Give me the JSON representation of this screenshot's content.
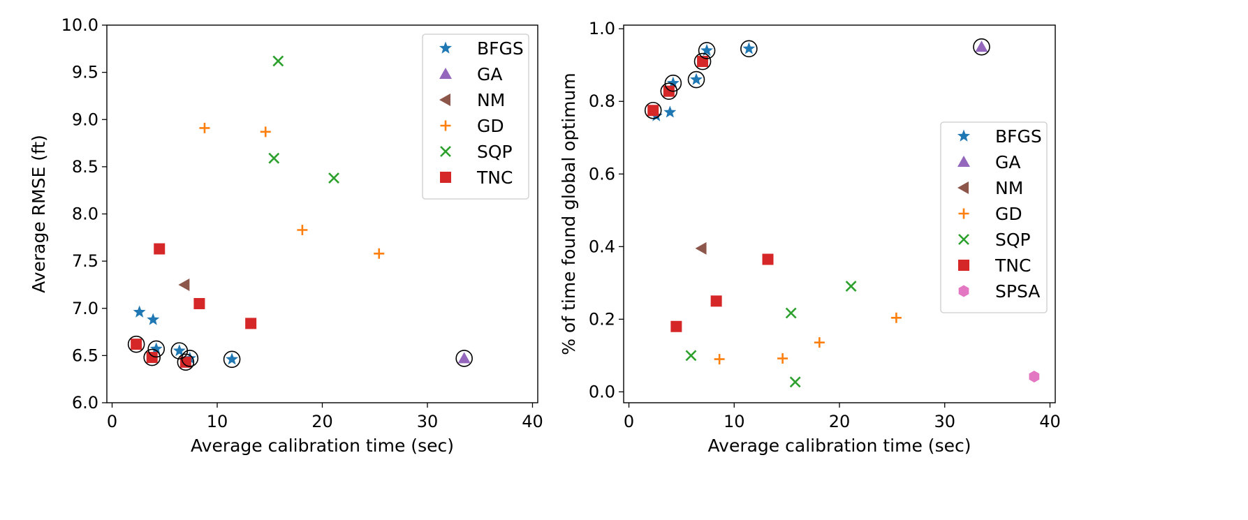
{
  "chart_data": [
    {
      "type": "scatter",
      "title": "",
      "xlabel": "Average calibration time (sec)",
      "ylabel": "Average RMSE (ft)",
      "xlim": [
        -0.5,
        40.5
      ],
      "ylim": [
        6.0,
        10.0
      ],
      "xticks": [
        0,
        10,
        20,
        30,
        40
      ],
      "xtick_labels": [
        "0",
        "10",
        "20",
        "30",
        "40"
      ],
      "yticks": [
        6.0,
        6.5,
        7.0,
        7.5,
        8.0,
        8.5,
        9.0,
        9.5,
        10.0
      ],
      "ytick_labels": [
        "6.0",
        "6.5",
        "7.0",
        "7.5",
        "8.0",
        "8.5",
        "9.0",
        "9.5",
        "10.0"
      ],
      "legend_position": "top-right",
      "series": [
        {
          "name": "BFGS",
          "marker": "star",
          "color": "#1f77b4",
          "points": [
            [
              2.6,
              6.96
            ],
            [
              3.9,
              6.88
            ],
            [
              4.2,
              6.57
            ],
            [
              6.4,
              6.55
            ],
            [
              7.4,
              6.47
            ],
            [
              11.4,
              6.46
            ]
          ]
        },
        {
          "name": "GA",
          "marker": "triangle-up",
          "color": "#9467bd",
          "points": [
            [
              33.5,
              6.47
            ]
          ]
        },
        {
          "name": "NM",
          "marker": "triangle-left",
          "color": "#8c564b",
          "points": [
            [
              6.9,
              7.25
            ]
          ]
        },
        {
          "name": "GD",
          "marker": "plus",
          "color": "#ff7f0e",
          "points": [
            [
              8.8,
              8.91
            ],
            [
              14.6,
              8.87
            ],
            [
              18.1,
              7.83
            ],
            [
              25.4,
              7.58
            ]
          ]
        },
        {
          "name": "SQP",
          "marker": "x",
          "color": "#2ca02c",
          "points": [
            [
              15.8,
              9.62
            ],
            [
              15.4,
              8.59
            ],
            [
              21.1,
              8.38
            ]
          ]
        },
        {
          "name": "TNC",
          "marker": "square",
          "color": "#d62728",
          "points": [
            [
              4.5,
              7.63
            ],
            [
              8.3,
              7.05
            ],
            [
              13.2,
              6.84
            ],
            [
              2.3,
              6.62
            ],
            [
              3.8,
              6.48
            ],
            [
              7.0,
              6.43
            ]
          ]
        }
      ],
      "circled_points": [
        [
          2.3,
          6.62
        ],
        [
          3.8,
          6.48
        ],
        [
          4.2,
          6.57
        ],
        [
          6.4,
          6.55
        ],
        [
          7.0,
          6.43
        ],
        [
          7.4,
          6.47
        ],
        [
          11.4,
          6.46
        ],
        [
          33.5,
          6.47
        ]
      ]
    },
    {
      "type": "scatter",
      "title": "",
      "xlabel": "Average calibration time (sec)",
      "ylabel": "% of time found global optimum",
      "xlim": [
        -0.5,
        40.5
      ],
      "ylim": [
        -0.03,
        1.01
      ],
      "xticks": [
        0,
        10,
        20,
        30,
        40
      ],
      "xtick_labels": [
        "0",
        "10",
        "20",
        "30",
        "40"
      ],
      "yticks": [
        0.0,
        0.2,
        0.4,
        0.6,
        0.8,
        1.0
      ],
      "ytick_labels": [
        "0.0",
        "0.2",
        "0.4",
        "0.6",
        "0.8",
        "1.0"
      ],
      "legend_position": "center-right",
      "series": [
        {
          "name": "BFGS",
          "marker": "star",
          "color": "#1f77b4",
          "points": [
            [
              2.6,
              0.76
            ],
            [
              3.9,
              0.77
            ],
            [
              4.2,
              0.85
            ],
            [
              6.4,
              0.86
            ],
            [
              7.4,
              0.94
            ],
            [
              11.4,
              0.945
            ]
          ]
        },
        {
          "name": "GA",
          "marker": "triangle-up",
          "color": "#9467bd",
          "points": [
            [
              33.5,
              0.95
            ]
          ]
        },
        {
          "name": "NM",
          "marker": "triangle-left",
          "color": "#8c564b",
          "points": [
            [
              6.9,
              0.395
            ]
          ]
        },
        {
          "name": "GD",
          "marker": "plus",
          "color": "#ff7f0e",
          "points": [
            [
              8.6,
              0.09
            ],
            [
              14.6,
              0.092
            ],
            [
              18.1,
              0.136
            ],
            [
              25.4,
              0.204
            ]
          ]
        },
        {
          "name": "SQP",
          "marker": "x",
          "color": "#2ca02c",
          "points": [
            [
              5.9,
              0.1
            ],
            [
              15.4,
              0.217
            ],
            [
              21.1,
              0.291
            ],
            [
              15.8,
              0.027
            ]
          ]
        },
        {
          "name": "TNC",
          "marker": "square",
          "color": "#d62728",
          "points": [
            [
              2.3,
              0.775
            ],
            [
              3.8,
              0.828
            ],
            [
              7.0,
              0.91
            ],
            [
              4.5,
              0.18
            ],
            [
              8.3,
              0.25
            ],
            [
              13.2,
              0.365
            ]
          ]
        },
        {
          "name": "SPSA",
          "marker": "hexagon",
          "color": "#e377c2",
          "points": [
            [
              38.5,
              0.042
            ]
          ]
        }
      ],
      "circled_points": [
        [
          2.3,
          0.775
        ],
        [
          3.8,
          0.828
        ],
        [
          4.2,
          0.85
        ],
        [
          6.4,
          0.86
        ],
        [
          7.0,
          0.91
        ],
        [
          7.4,
          0.94
        ],
        [
          11.4,
          0.945
        ],
        [
          33.5,
          0.95
        ]
      ]
    }
  ]
}
